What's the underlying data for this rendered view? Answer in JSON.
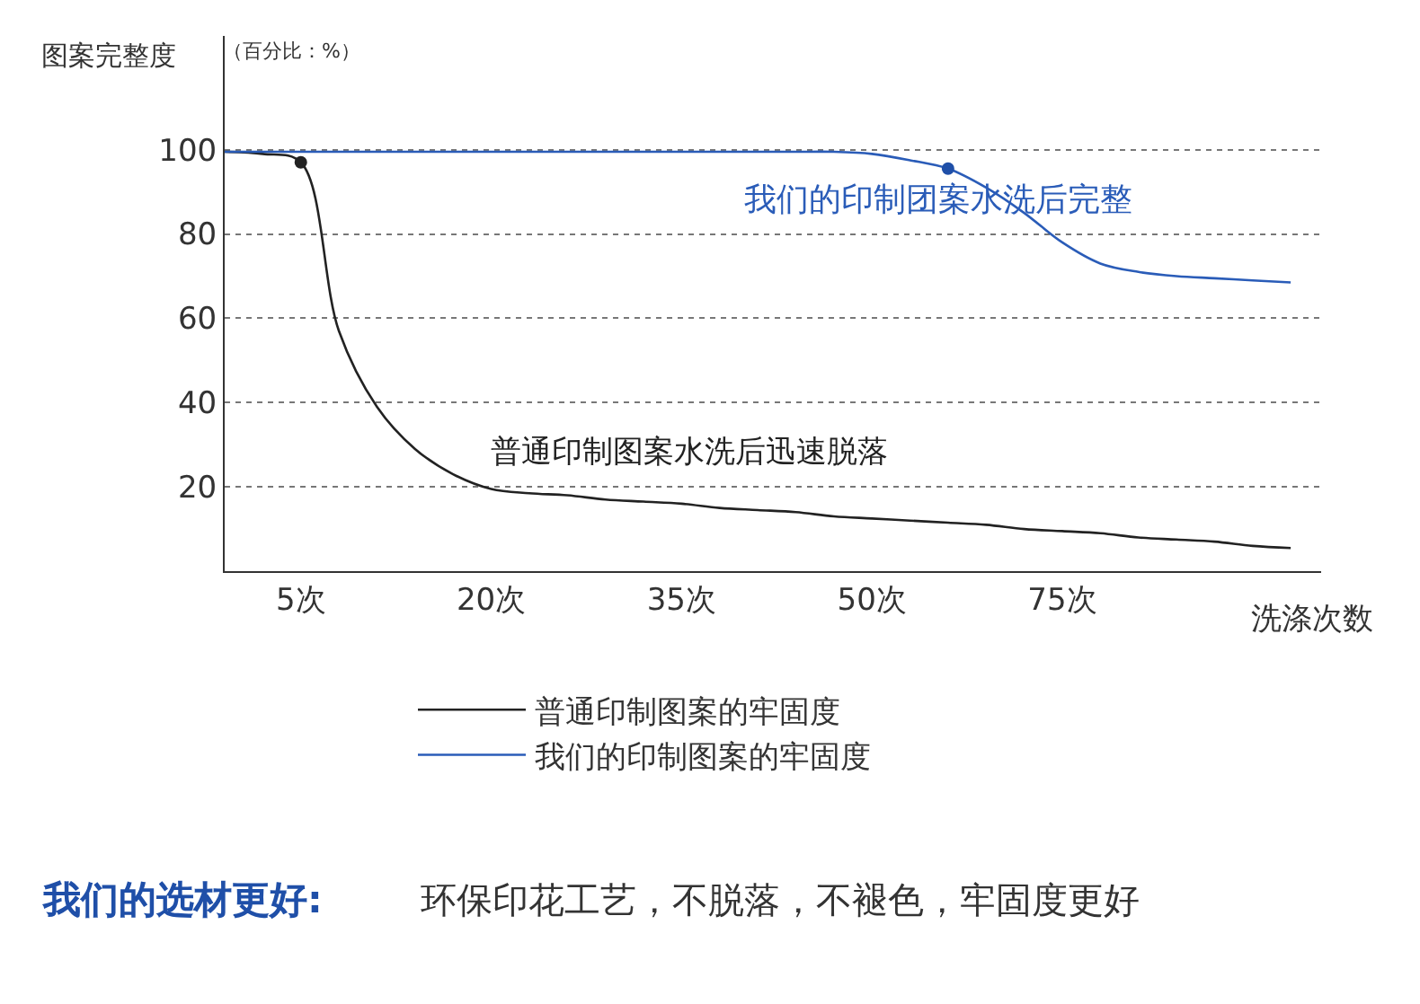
{
  "chart_data": {
    "type": "line",
    "ylabel": "图案完整度",
    "xlabel": "洗涤次数",
    "categories": [
      null,
      null,
      "5次",
      null,
      null,
      null,
      null,
      "20次",
      null,
      null,
      null,
      null,
      "35次",
      null,
      null,
      null,
      null,
      "50次",
      null,
      null,
      null,
      null,
      "75次",
      null,
      null,
      null,
      null,
      null,
      null
    ],
    "series": [
      {
        "name": "普通印制图案的牢固度",
        "color": "#222222",
        "values": [
          99.5,
          99,
          97,
          57,
          39,
          29,
          23,
          19.5,
          18.5,
          18,
          17,
          16.5,
          16,
          15,
          14.5,
          14,
          13,
          12.5,
          12,
          11.5,
          11,
          10,
          9.5,
          9,
          8,
          7.5,
          7,
          6,
          5.5
        ]
      },
      {
        "name": "我们的印制图案的牢固度",
        "color": "#2a5cb8",
        "values": [
          99.5,
          99.5,
          99.5,
          99.5,
          99.5,
          99.5,
          99.5,
          99.5,
          99.5,
          99.5,
          99.5,
          99.5,
          99.5,
          99.5,
          99.5,
          99.5,
          99.5,
          99,
          97.5,
          95.5,
          91,
          85,
          78,
          73,
          71,
          70,
          69.5,
          69,
          68.5
        ]
      },
      {
        "type": "scatter",
        "color": "#222222",
        "values": [
          null,
          null,
          97,
          null,
          null,
          null,
          null,
          null,
          null,
          null,
          null,
          null,
          null,
          null,
          null,
          null,
          null,
          null,
          null,
          null,
          null,
          null,
          null,
          null,
          null,
          null,
          null,
          null,
          null
        ]
      },
      {
        "type": "scatter",
        "color": "#1f4fa8",
        "values": [
          null,
          null,
          null,
          null,
          null,
          null,
          null,
          null,
          null,
          null,
          null,
          null,
          null,
          null,
          null,
          null,
          null,
          null,
          null,
          95.5,
          null,
          null,
          null,
          null,
          null,
          null,
          null,
          null,
          null
        ]
      }
    ],
    "ylim": [
      0,
      127
    ],
    "yticks": [
      20,
      40,
      60,
      80,
      100
    ],
    "grid": "y",
    "legend": "bottom",
    "line_style": "solid",
    "annotations": [
      "（百分比：%）",
      "我们的印制团案水洗后完整",
      "普通印制图案水洗后迅速脱落",
      "我们的选材更好:",
      "环保印花工艺，不脱落，不褪色，牢固度更好"
    ]
  }
}
